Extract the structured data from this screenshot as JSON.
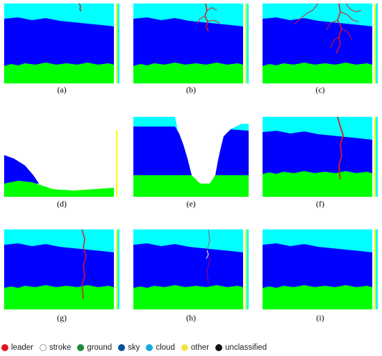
{
  "panels": [
    {
      "id": "a",
      "label": "(a)"
    },
    {
      "id": "b",
      "label": "(b)"
    },
    {
      "id": "c",
      "label": "(c)"
    },
    {
      "id": "d",
      "label": "(d)"
    },
    {
      "id": "e",
      "label": "(e)"
    },
    {
      "id": "f",
      "label": "(f)"
    },
    {
      "id": "g",
      "label": "(g)"
    },
    {
      "id": "h",
      "label": "(h)"
    },
    {
      "id": "i",
      "label": "(i)"
    }
  ],
  "legend": [
    {
      "label": "leader",
      "color": "#e0141e"
    },
    {
      "label": "stroke",
      "color": "#ffffff"
    },
    {
      "label": "ground",
      "color": "#1f8a3a"
    },
    {
      "label": "sky",
      "color": "#0a4f9c"
    },
    {
      "label": "cloud",
      "color": "#16a9e1"
    },
    {
      "label": "other",
      "color": "#f2e544"
    },
    {
      "label": "unclassified",
      "color": "#111111"
    }
  ],
  "colors": {
    "cloud_fill": "#00ffff",
    "sky_fill": "#0000ff",
    "ground_fill": "#00ff00",
    "leader_fill": "#e8141e",
    "stroke_fill": "#ffffff",
    "other_fill": "#ffff00"
  }
}
